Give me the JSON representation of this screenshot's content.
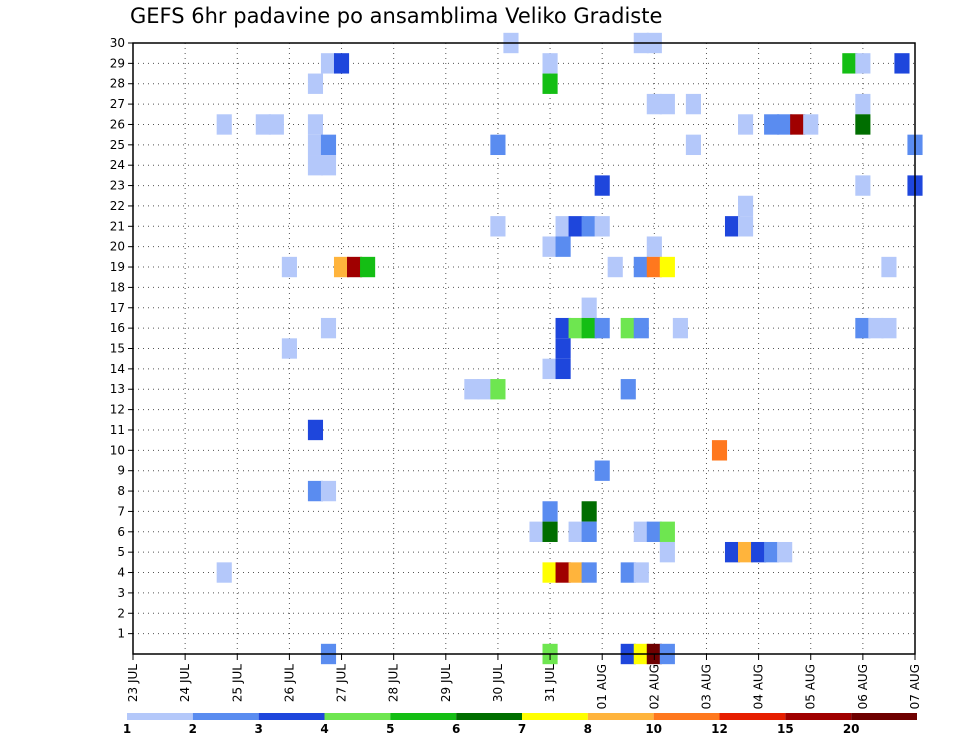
{
  "chart_data": {
    "type": "heatmap",
    "title": "GEFS 6hr padavine po ansamblima Veliko Gradiste",
    "xlabel": "",
    "ylabel": "",
    "x_tick_labels": [
      "23 JUL",
      "24 JUL",
      "25 JUL",
      "26 JUL",
      "27 JUL",
      "28 JUL",
      "29 JUL",
      "30 JUL",
      "31 JUL",
      "01 AUG",
      "02 AUG",
      "03 AUG",
      "04 AUG",
      "05 AUG",
      "06 AUG",
      "07 AUG"
    ],
    "x_unit": "6h steps from 23 JUL 00Z",
    "xlim": [
      0,
      60
    ],
    "y_tick_labels": [
      "1",
      "2",
      "3",
      "4",
      "5",
      "6",
      "7",
      "8",
      "9",
      "10",
      "11",
      "12",
      "13",
      "14",
      "15",
      "16",
      "17",
      "18",
      "19",
      "20",
      "21",
      "22",
      "23",
      "24",
      "25",
      "26",
      "27",
      "28",
      "29",
      "30"
    ],
    "ylim": [
      0,
      30
    ],
    "grid": true,
    "colorbar": {
      "labels": [
        "1",
        "2",
        "3",
        "4",
        "5",
        "6",
        "7",
        "8",
        "10",
        "12",
        "15",
        "20"
      ],
      "colors": [
        "#b4c8fa",
        "#5a8cf0",
        "#1e46dc",
        "#6ee650",
        "#14be14",
        "#006e00",
        "#ffff00",
        "#ffb43c",
        "#ff781e",
        "#e61e00",
        "#a00000",
        "#6e0000"
      ]
    },
    "cells": [
      {
        "x": 14.5,
        "y": 30,
        "c": 0
      },
      {
        "x": 19.5,
        "y": 30,
        "c": 0
      },
      {
        "x": 20,
        "y": 30,
        "c": 0
      },
      {
        "x": 7.5,
        "y": 29,
        "c": 0
      },
      {
        "x": 8,
        "y": 29,
        "c": 2
      },
      {
        "x": 16,
        "y": 29,
        "c": 0
      },
      {
        "x": 27.5,
        "y": 29,
        "c": 4
      },
      {
        "x": 28,
        "y": 29,
        "c": 0
      },
      {
        "x": 29.5,
        "y": 29,
        "c": 2
      },
      {
        "x": 7,
        "y": 28,
        "c": 0
      },
      {
        "x": 16,
        "y": 28,
        "c": 4
      },
      {
        "x": 20,
        "y": 27,
        "c": 0
      },
      {
        "x": 20.5,
        "y": 27,
        "c": 0
      },
      {
        "x": 21.5,
        "y": 27,
        "c": 0
      },
      {
        "x": 28,
        "y": 27,
        "c": 0
      },
      {
        "x": 3.5,
        "y": 26,
        "c": 0
      },
      {
        "x": 5,
        "y": 26,
        "c": 0
      },
      {
        "x": 5.5,
        "y": 26,
        "c": 0
      },
      {
        "x": 7,
        "y": 26,
        "c": 0
      },
      {
        "x": 23.5,
        "y": 26,
        "c": 0
      },
      {
        "x": 24.5,
        "y": 26,
        "c": 1
      },
      {
        "x": 25,
        "y": 26,
        "c": 1
      },
      {
        "x": 25.5,
        "y": 26,
        "c": 10
      },
      {
        "x": 26,
        "y": 26,
        "c": 0
      },
      {
        "x": 28,
        "y": 26,
        "c": 5
      },
      {
        "x": 7,
        "y": 25,
        "c": 0
      },
      {
        "x": 7.5,
        "y": 25,
        "c": 1
      },
      {
        "x": 14,
        "y": 25,
        "c": 1
      },
      {
        "x": 21.5,
        "y": 25,
        "c": 0
      },
      {
        "x": 30,
        "y": 25,
        "c": 1
      },
      {
        "x": 7,
        "y": 24,
        "c": 0
      },
      {
        "x": 7.5,
        "y": 24,
        "c": 0
      },
      {
        "x": 18,
        "y": 23,
        "c": 2
      },
      {
        "x": 28,
        "y": 23,
        "c": 0
      },
      {
        "x": 30,
        "y": 23,
        "c": 2
      },
      {
        "x": 23.5,
        "y": 22,
        "c": 0
      },
      {
        "x": 14,
        "y": 21,
        "c": 0
      },
      {
        "x": 16.5,
        "y": 21,
        "c": 0
      },
      {
        "x": 17,
        "y": 21,
        "c": 2
      },
      {
        "x": 17.5,
        "y": 21,
        "c": 1
      },
      {
        "x": 18,
        "y": 21,
        "c": 0
      },
      {
        "x": 23,
        "y": 21,
        "c": 2
      },
      {
        "x": 23.5,
        "y": 21,
        "c": 0
      },
      {
        "x": 16,
        "y": 20,
        "c": 0
      },
      {
        "x": 16.5,
        "y": 20,
        "c": 1
      },
      {
        "x": 20,
        "y": 20,
        "c": 0
      },
      {
        "x": 6,
        "y": 19,
        "c": 0
      },
      {
        "x": 8,
        "y": 19,
        "c": 7
      },
      {
        "x": 8.5,
        "y": 19,
        "c": 10
      },
      {
        "x": 9,
        "y": 19,
        "c": 4
      },
      {
        "x": 18.5,
        "y": 19,
        "c": 0
      },
      {
        "x": 19.5,
        "y": 19,
        "c": 1
      },
      {
        "x": 20,
        "y": 19,
        "c": 8
      },
      {
        "x": 20.5,
        "y": 19,
        "c": 6
      },
      {
        "x": 29,
        "y": 19,
        "c": 0
      },
      {
        "x": 17.5,
        "y": 17,
        "c": 0
      },
      {
        "x": 7.5,
        "y": 16,
        "c": 0
      },
      {
        "x": 16.5,
        "y": 16,
        "c": 2
      },
      {
        "x": 17,
        "y": 16,
        "c": 3
      },
      {
        "x": 17.5,
        "y": 16,
        "c": 4
      },
      {
        "x": 18,
        "y": 16,
        "c": 1
      },
      {
        "x": 19,
        "y": 16,
        "c": 3
      },
      {
        "x": 19.5,
        "y": 16,
        "c": 1
      },
      {
        "x": 21,
        "y": 16,
        "c": 0
      },
      {
        "x": 28,
        "y": 16,
        "c": 1
      },
      {
        "x": 28.5,
        "y": 16,
        "c": 0
      },
      {
        "x": 29,
        "y": 16,
        "c": 0
      },
      {
        "x": 16.5,
        "y": 15,
        "c": 2
      },
      {
        "x": 6,
        "y": 15,
        "c": 0
      },
      {
        "x": 16,
        "y": 14,
        "c": 0
      },
      {
        "x": 16.5,
        "y": 14,
        "c": 2
      },
      {
        "x": 13,
        "y": 13,
        "c": 0
      },
      {
        "x": 13.5,
        "y": 13,
        "c": 0
      },
      {
        "x": 14,
        "y": 13,
        "c": 3
      },
      {
        "x": 19,
        "y": 13,
        "c": 1
      },
      {
        "x": 7,
        "y": 11,
        "c": 2
      },
      {
        "x": 22.5,
        "y": 10,
        "c": 8
      },
      {
        "x": 18,
        "y": 9,
        "c": 1
      },
      {
        "x": 7,
        "y": 8,
        "c": 1
      },
      {
        "x": 7.5,
        "y": 8,
        "c": 0
      },
      {
        "x": 16,
        "y": 7,
        "c": 1
      },
      {
        "x": 17.5,
        "y": 7,
        "c": 5
      },
      {
        "x": 15.5,
        "y": 6,
        "c": 0
      },
      {
        "x": 16,
        "y": 6,
        "c": 5
      },
      {
        "x": 17,
        "y": 6,
        "c": 0
      },
      {
        "x": 17.5,
        "y": 6,
        "c": 1
      },
      {
        "x": 19.5,
        "y": 6,
        "c": 0
      },
      {
        "x": 20,
        "y": 6,
        "c": 1
      },
      {
        "x": 20.5,
        "y": 6,
        "c": 3
      },
      {
        "x": 20.5,
        "y": 5,
        "c": 0
      },
      {
        "x": 23,
        "y": 5,
        "c": 2
      },
      {
        "x": 23.5,
        "y": 5,
        "c": 7
      },
      {
        "x": 24,
        "y": 5,
        "c": 2
      },
      {
        "x": 24.5,
        "y": 5,
        "c": 1
      },
      {
        "x": 25,
        "y": 5,
        "c": 0
      },
      {
        "x": 3.5,
        "y": 4,
        "c": 0
      },
      {
        "x": 16,
        "y": 4,
        "c": 6
      },
      {
        "x": 16.5,
        "y": 4,
        "c": 10
      },
      {
        "x": 17,
        "y": 4,
        "c": 7
      },
      {
        "x": 17.5,
        "y": 4,
        "c": 1
      },
      {
        "x": 19,
        "y": 4,
        "c": 1
      },
      {
        "x": 19.5,
        "y": 4,
        "c": 0
      },
      {
        "x": 7.5,
        "y": 0,
        "c": 1
      },
      {
        "x": 16,
        "y": 0,
        "c": 3
      },
      {
        "x": 19,
        "y": 0,
        "c": 2
      },
      {
        "x": 19.5,
        "y": 0,
        "c": 6
      },
      {
        "x": 20,
        "y": 0,
        "c": 11
      },
      {
        "x": 20.5,
        "y": 0,
        "c": 1
      }
    ]
  }
}
